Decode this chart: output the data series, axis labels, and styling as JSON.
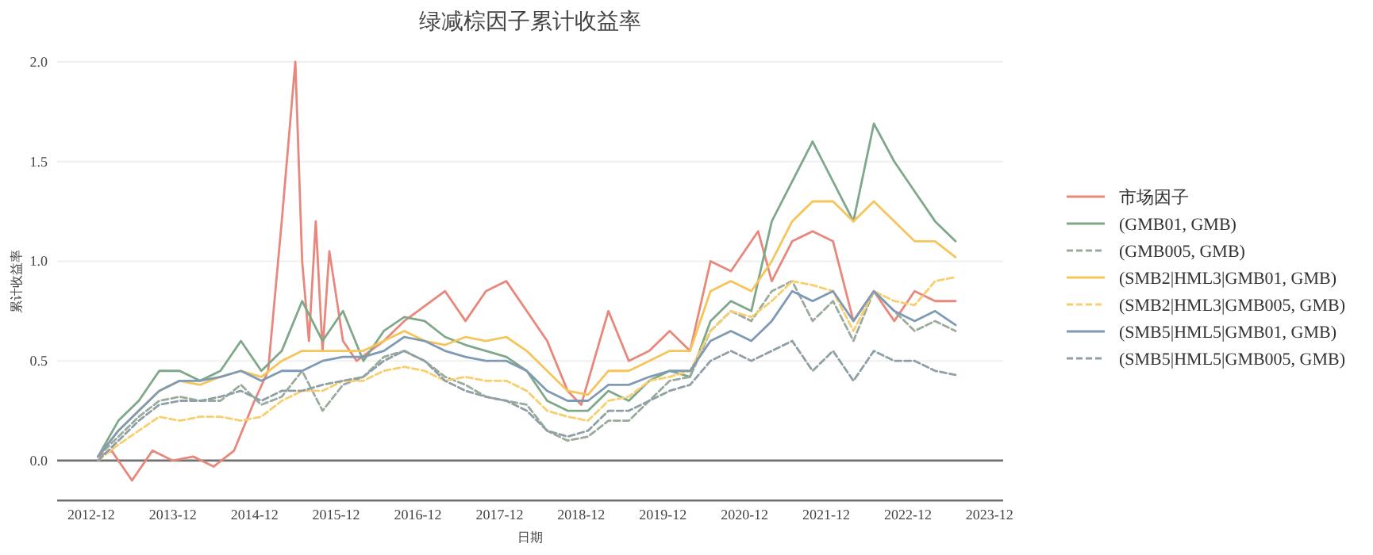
{
  "chart_data": {
    "type": "line",
    "title": "绿减棕因子累计收益率",
    "xlabel": "日期",
    "ylabel": "累计收益率",
    "x": [
      "2013-01",
      "2013-04",
      "2013-07",
      "2013-10",
      "2014-01",
      "2014-04",
      "2014-07",
      "2014-10",
      "2015-01",
      "2015-04",
      "2015-07",
      "2015-10",
      "2016-01",
      "2016-04",
      "2016-07",
      "2016-10",
      "2017-01",
      "2017-04",
      "2017-07",
      "2017-10",
      "2018-01",
      "2018-04",
      "2018-07",
      "2018-10",
      "2019-01",
      "2019-04",
      "2019-07",
      "2019-10",
      "2020-01",
      "2020-04",
      "2020-07",
      "2020-10",
      "2021-01",
      "2021-04",
      "2021-07",
      "2021-10",
      "2022-01",
      "2022-04",
      "2022-07",
      "2022-10",
      "2023-01",
      "2023-04",
      "2023-07"
    ],
    "series": [
      {
        "name": "市场因子",
        "color": "#e8877c",
        "x": [
          "2013-01",
          "2013-03",
          "2013-06",
          "2013-09",
          "2013-12",
          "2014-03",
          "2014-06",
          "2014-09",
          "2014-12",
          "2015-02",
          "2015-04",
          "2015-06",
          "2015-07",
          "2015-08",
          "2015-09",
          "2015-10",
          "2015-11",
          "2016-01",
          "2016-03",
          "2016-07",
          "2016-10",
          "2016-12",
          "2017-04",
          "2017-07",
          "2017-10",
          "2018-01",
          "2018-04",
          "2018-07",
          "2018-10",
          "2018-12",
          "2019-04",
          "2019-07",
          "2019-10",
          "2020-01",
          "2020-04",
          "2020-07",
          "2020-10",
          "2021-01",
          "2021-02",
          "2021-04",
          "2021-07",
          "2021-10",
          "2022-01",
          "2022-04",
          "2022-07",
          "2022-10",
          "2023-01",
          "2023-04",
          "2023-07"
        ],
        "values": [
          0.02,
          0.05,
          -0.1,
          0.05,
          0.0,
          0.02,
          -0.03,
          0.05,
          0.3,
          0.45,
          1.2,
          2.0,
          1.0,
          0.6,
          1.2,
          0.55,
          1.05,
          0.6,
          0.5,
          0.6,
          0.7,
          0.75,
          0.85,
          0.7,
          0.85,
          0.9,
          0.75,
          0.6,
          0.35,
          0.28,
          0.75,
          0.5,
          0.55,
          0.65,
          0.55,
          1.0,
          0.95,
          1.1,
          1.15,
          0.9,
          1.1,
          1.15,
          1.1,
          0.7,
          0.85,
          0.7,
          0.85,
          0.8,
          0.8
        ]
      },
      {
        "name": "(GMB01, GMB)",
        "color": "#7fa88a",
        "values": [
          0.02,
          0.2,
          0.3,
          0.45,
          0.45,
          0.4,
          0.45,
          0.6,
          0.45,
          0.55,
          0.8,
          0.6,
          0.75,
          0.5,
          0.65,
          0.72,
          0.7,
          0.62,
          0.58,
          0.55,
          0.52,
          0.45,
          0.3,
          0.25,
          0.25,
          0.35,
          0.3,
          0.4,
          0.45,
          0.42,
          0.7,
          0.8,
          0.75,
          1.2,
          1.4,
          1.6,
          1.4,
          1.2,
          1.69,
          1.5,
          1.35,
          1.2,
          1.1
        ]
      },
      {
        "name": "(GMB005, GMB)",
        "color": "#9aab9c",
        "line_style": "dashed",
        "values": [
          0.02,
          0.12,
          0.22,
          0.3,
          0.32,
          0.3,
          0.3,
          0.38,
          0.28,
          0.32,
          0.45,
          0.25,
          0.38,
          0.42,
          0.52,
          0.55,
          0.5,
          0.42,
          0.38,
          0.32,
          0.3,
          0.28,
          0.15,
          0.1,
          0.12,
          0.2,
          0.2,
          0.3,
          0.4,
          0.42,
          0.65,
          0.75,
          0.7,
          0.85,
          0.9,
          0.7,
          0.8,
          0.6,
          0.85,
          0.75,
          0.65,
          0.7,
          0.65
        ]
      },
      {
        "name": "(SMB2|HML3|GMB01, GMB)",
        "color": "#f5c55a",
        "values": [
          0.02,
          0.15,
          0.25,
          0.35,
          0.4,
          0.38,
          0.42,
          0.45,
          0.42,
          0.5,
          0.55,
          0.55,
          0.55,
          0.55,
          0.6,
          0.65,
          0.6,
          0.58,
          0.62,
          0.6,
          0.62,
          0.55,
          0.45,
          0.35,
          0.33,
          0.45,
          0.45,
          0.5,
          0.55,
          0.55,
          0.85,
          0.9,
          0.85,
          1.0,
          1.2,
          1.3,
          1.3,
          1.2,
          1.3,
          1.2,
          1.1,
          1.1,
          1.02
        ]
      },
      {
        "name": "(SMB2|HML3|GMB005, GMB)",
        "color": "#f7cf6e",
        "line_style": "dashed",
        "values": [
          0.0,
          0.08,
          0.15,
          0.22,
          0.2,
          0.22,
          0.22,
          0.2,
          0.22,
          0.3,
          0.35,
          0.35,
          0.4,
          0.4,
          0.45,
          0.47,
          0.45,
          0.4,
          0.42,
          0.4,
          0.4,
          0.35,
          0.25,
          0.22,
          0.2,
          0.3,
          0.32,
          0.4,
          0.42,
          0.45,
          0.65,
          0.75,
          0.72,
          0.8,
          0.9,
          0.88,
          0.85,
          0.65,
          0.85,
          0.8,
          0.78,
          0.9,
          0.92
        ]
      },
      {
        "name": "(SMB5|HML5|GMB01, GMB)",
        "color": "#7f9ab5",
        "values": [
          0.02,
          0.15,
          0.25,
          0.35,
          0.4,
          0.4,
          0.42,
          0.45,
          0.4,
          0.45,
          0.45,
          0.5,
          0.52,
          0.52,
          0.55,
          0.62,
          0.6,
          0.55,
          0.52,
          0.5,
          0.5,
          0.45,
          0.35,
          0.3,
          0.3,
          0.38,
          0.38,
          0.42,
          0.45,
          0.45,
          0.6,
          0.65,
          0.6,
          0.7,
          0.85,
          0.8,
          0.85,
          0.7,
          0.85,
          0.75,
          0.7,
          0.75,
          0.68
        ]
      },
      {
        "name": "(SMB5|HML5|GMB005, GMB)",
        "color": "#8f9fa6",
        "line_style": "dashed",
        "values": [
          0.0,
          0.1,
          0.2,
          0.28,
          0.3,
          0.3,
          0.32,
          0.35,
          0.3,
          0.35,
          0.35,
          0.38,
          0.4,
          0.42,
          0.5,
          0.55,
          0.5,
          0.4,
          0.35,
          0.32,
          0.3,
          0.25,
          0.15,
          0.12,
          0.15,
          0.25,
          0.25,
          0.3,
          0.35,
          0.38,
          0.5,
          0.55,
          0.5,
          0.55,
          0.6,
          0.45,
          0.55,
          0.4,
          0.55,
          0.5,
          0.5,
          0.45,
          0.43
        ]
      }
    ],
    "xlim": [
      "2012-07",
      "2024-02"
    ],
    "ylim": [
      -0.2,
      2.0
    ],
    "xticks": [
      "2012-12",
      "2013-12",
      "2014-12",
      "2015-12",
      "2016-12",
      "2017-12",
      "2018-12",
      "2019-12",
      "2020-12",
      "2021-12",
      "2022-12",
      "2023-12"
    ],
    "yticks": [
      {
        "value": 0,
        "label": "0.0"
      },
      {
        "value": 0.5,
        "label": "0.5"
      },
      {
        "value": 1,
        "label": "1.0"
      },
      {
        "value": 1.5,
        "label": "1.5"
      },
      {
        "value": 2,
        "label": "2.0"
      }
    ],
    "ref_lines": [
      {
        "axis": "y",
        "value": 0,
        "color": "#707070"
      }
    ],
    "grid": "y",
    "legend": "right"
  }
}
